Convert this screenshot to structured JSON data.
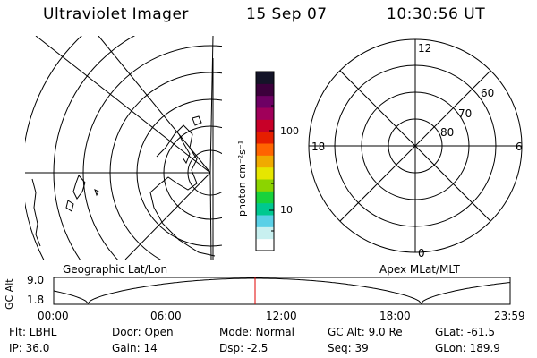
{
  "header": {
    "instrument": "Ultraviolet Imager",
    "date": "15 Sep 07",
    "time": "10:30:56 UT"
  },
  "colorbar": {
    "unit_label": "photon cm⁻²s⁻¹",
    "tick_100": "100",
    "tick_10": "10",
    "colors": [
      "#ffffff",
      "#c8f0f0",
      "#5ad0e6",
      "#00c890",
      "#18d23c",
      "#8cd400",
      "#e6e600",
      "#f0aa00",
      "#ff6400",
      "#e61e00",
      "#c80028",
      "#a0005a",
      "#6e0064",
      "#3c003c",
      "#141428"
    ]
  },
  "polar_plot": {
    "label_12": "12",
    "label_18": "18",
    "label_6": "6",
    "label_0": "0",
    "lat_60": "60",
    "lat_70": "70",
    "lat_80": "80"
  },
  "panels": {
    "left_caption": "Geographic Lat/Lon",
    "right_caption": "Apex MLat/MLT"
  },
  "timeline": {
    "ylabel": "GC Alt",
    "ytick_top": "9.0",
    "ytick_bottom": "1.8",
    "xticks": [
      "00:00",
      "06:00",
      "12:00",
      "18:00",
      "23:59"
    ],
    "marker_color": "#e00000"
  },
  "info": {
    "filter": "Flt: LBHL",
    "door": "Door: Open",
    "mode": "Mode: Normal",
    "gc_alt": "GC Alt: 9.0 Re",
    "glat": "GLat: -61.5",
    "ip": "IP: 36.0",
    "gain": "Gain: 14",
    "dsp": "Dsp:    -2.5",
    "seq": "Seq: 39",
    "glon": "GLon: 189.9"
  }
}
